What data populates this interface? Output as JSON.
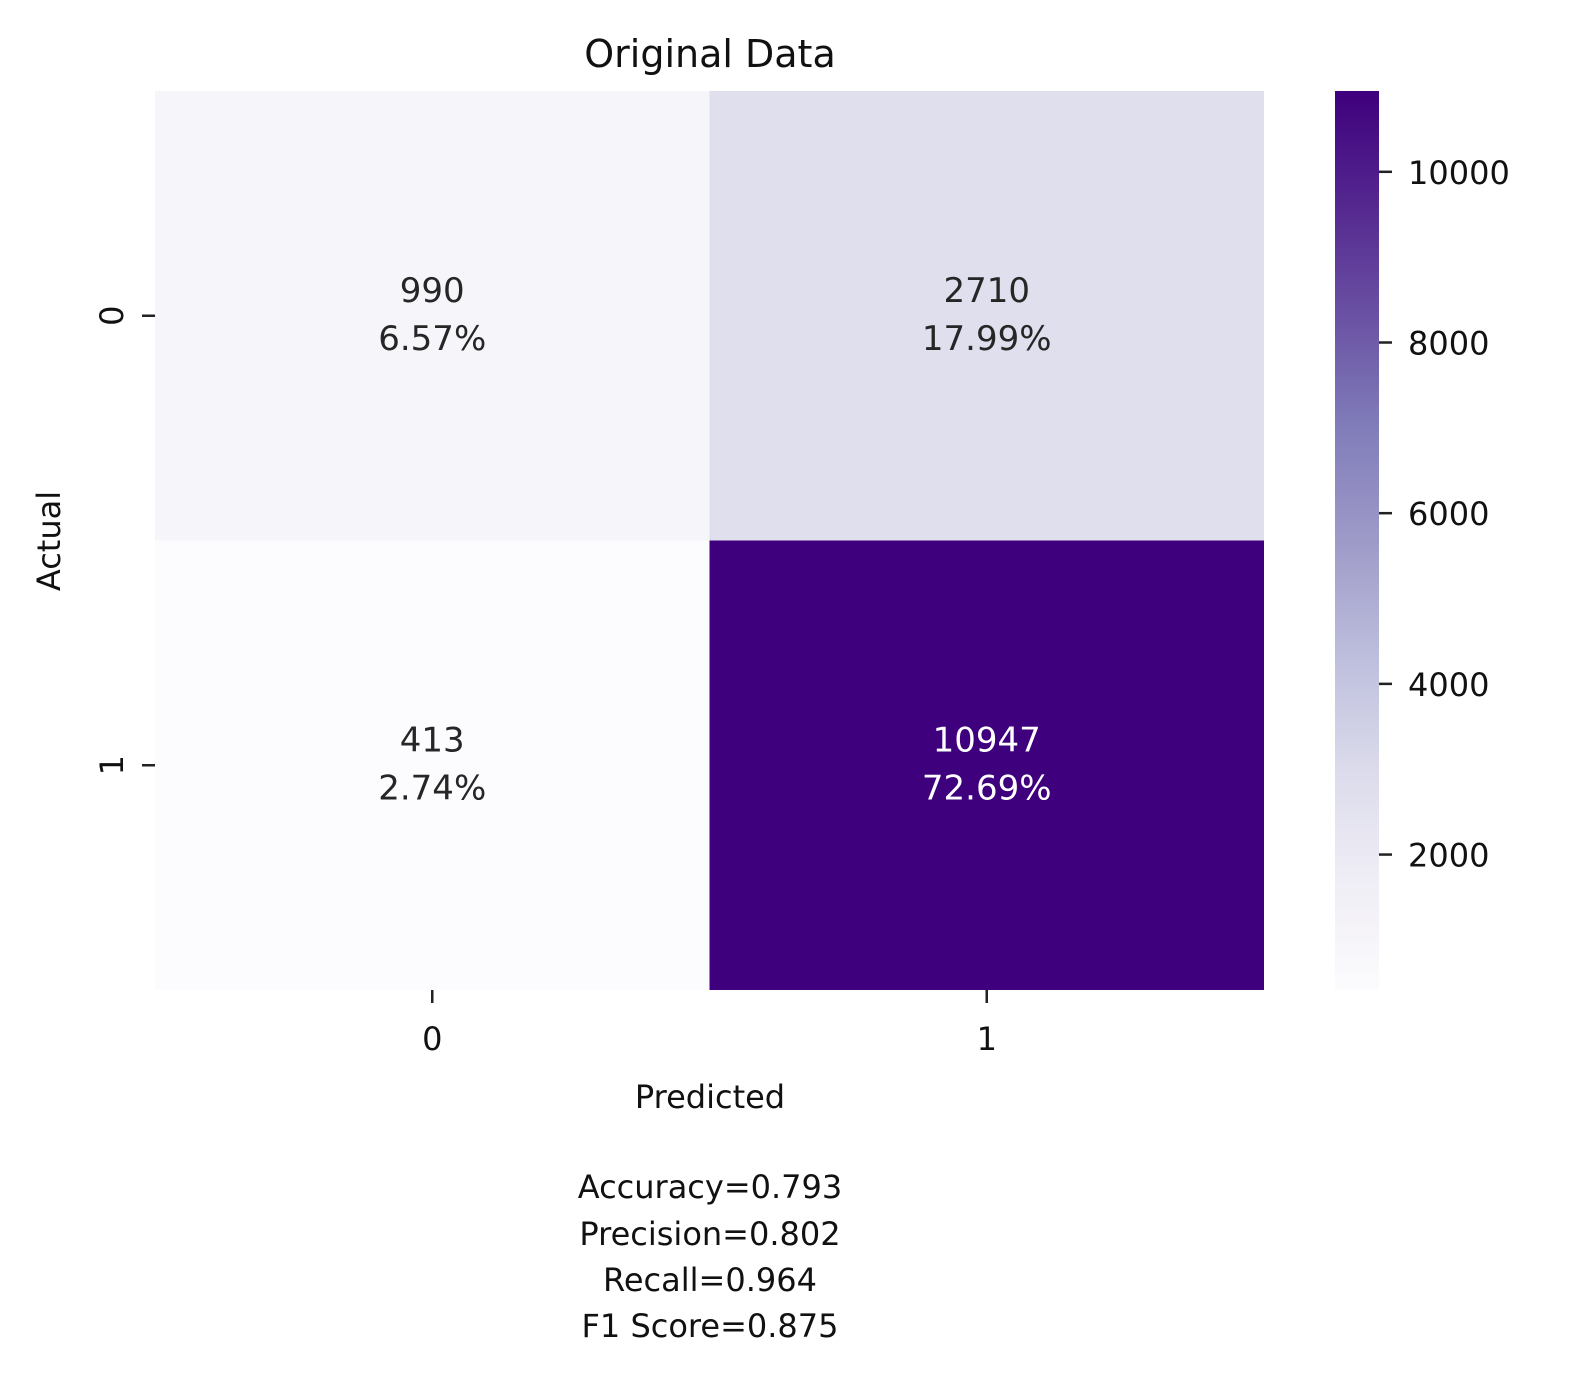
{
  "chart_data": {
    "type": "heatmap",
    "title": "Original Data",
    "xlabel": "Predicted",
    "ylabel": "Actual",
    "x_categories": [
      "0",
      "1"
    ],
    "y_categories": [
      "0",
      "1"
    ],
    "cells": [
      [
        {
          "count": 990,
          "count_label": "990",
          "percent_label": "6.57%"
        },
        {
          "count": 2710,
          "count_label": "2710",
          "percent_label": "17.99%"
        }
      ],
      [
        {
          "count": 413,
          "count_label": "413",
          "percent_label": "2.74%"
        },
        {
          "count": 10947,
          "count_label": "10947",
          "percent_label": "72.69%"
        }
      ]
    ],
    "colorbar": {
      "min": 413,
      "max": 10947,
      "ticks": [
        "2000",
        "4000",
        "6000",
        "8000",
        "10000"
      ],
      "colormap": "Purples",
      "low_color": "#fcfbfd",
      "high_color": "#3f007d"
    },
    "metrics": [
      "Accuracy=0.793",
      "Precision=0.802",
      "Recall=0.964",
      "F1 Score=0.875"
    ]
  }
}
